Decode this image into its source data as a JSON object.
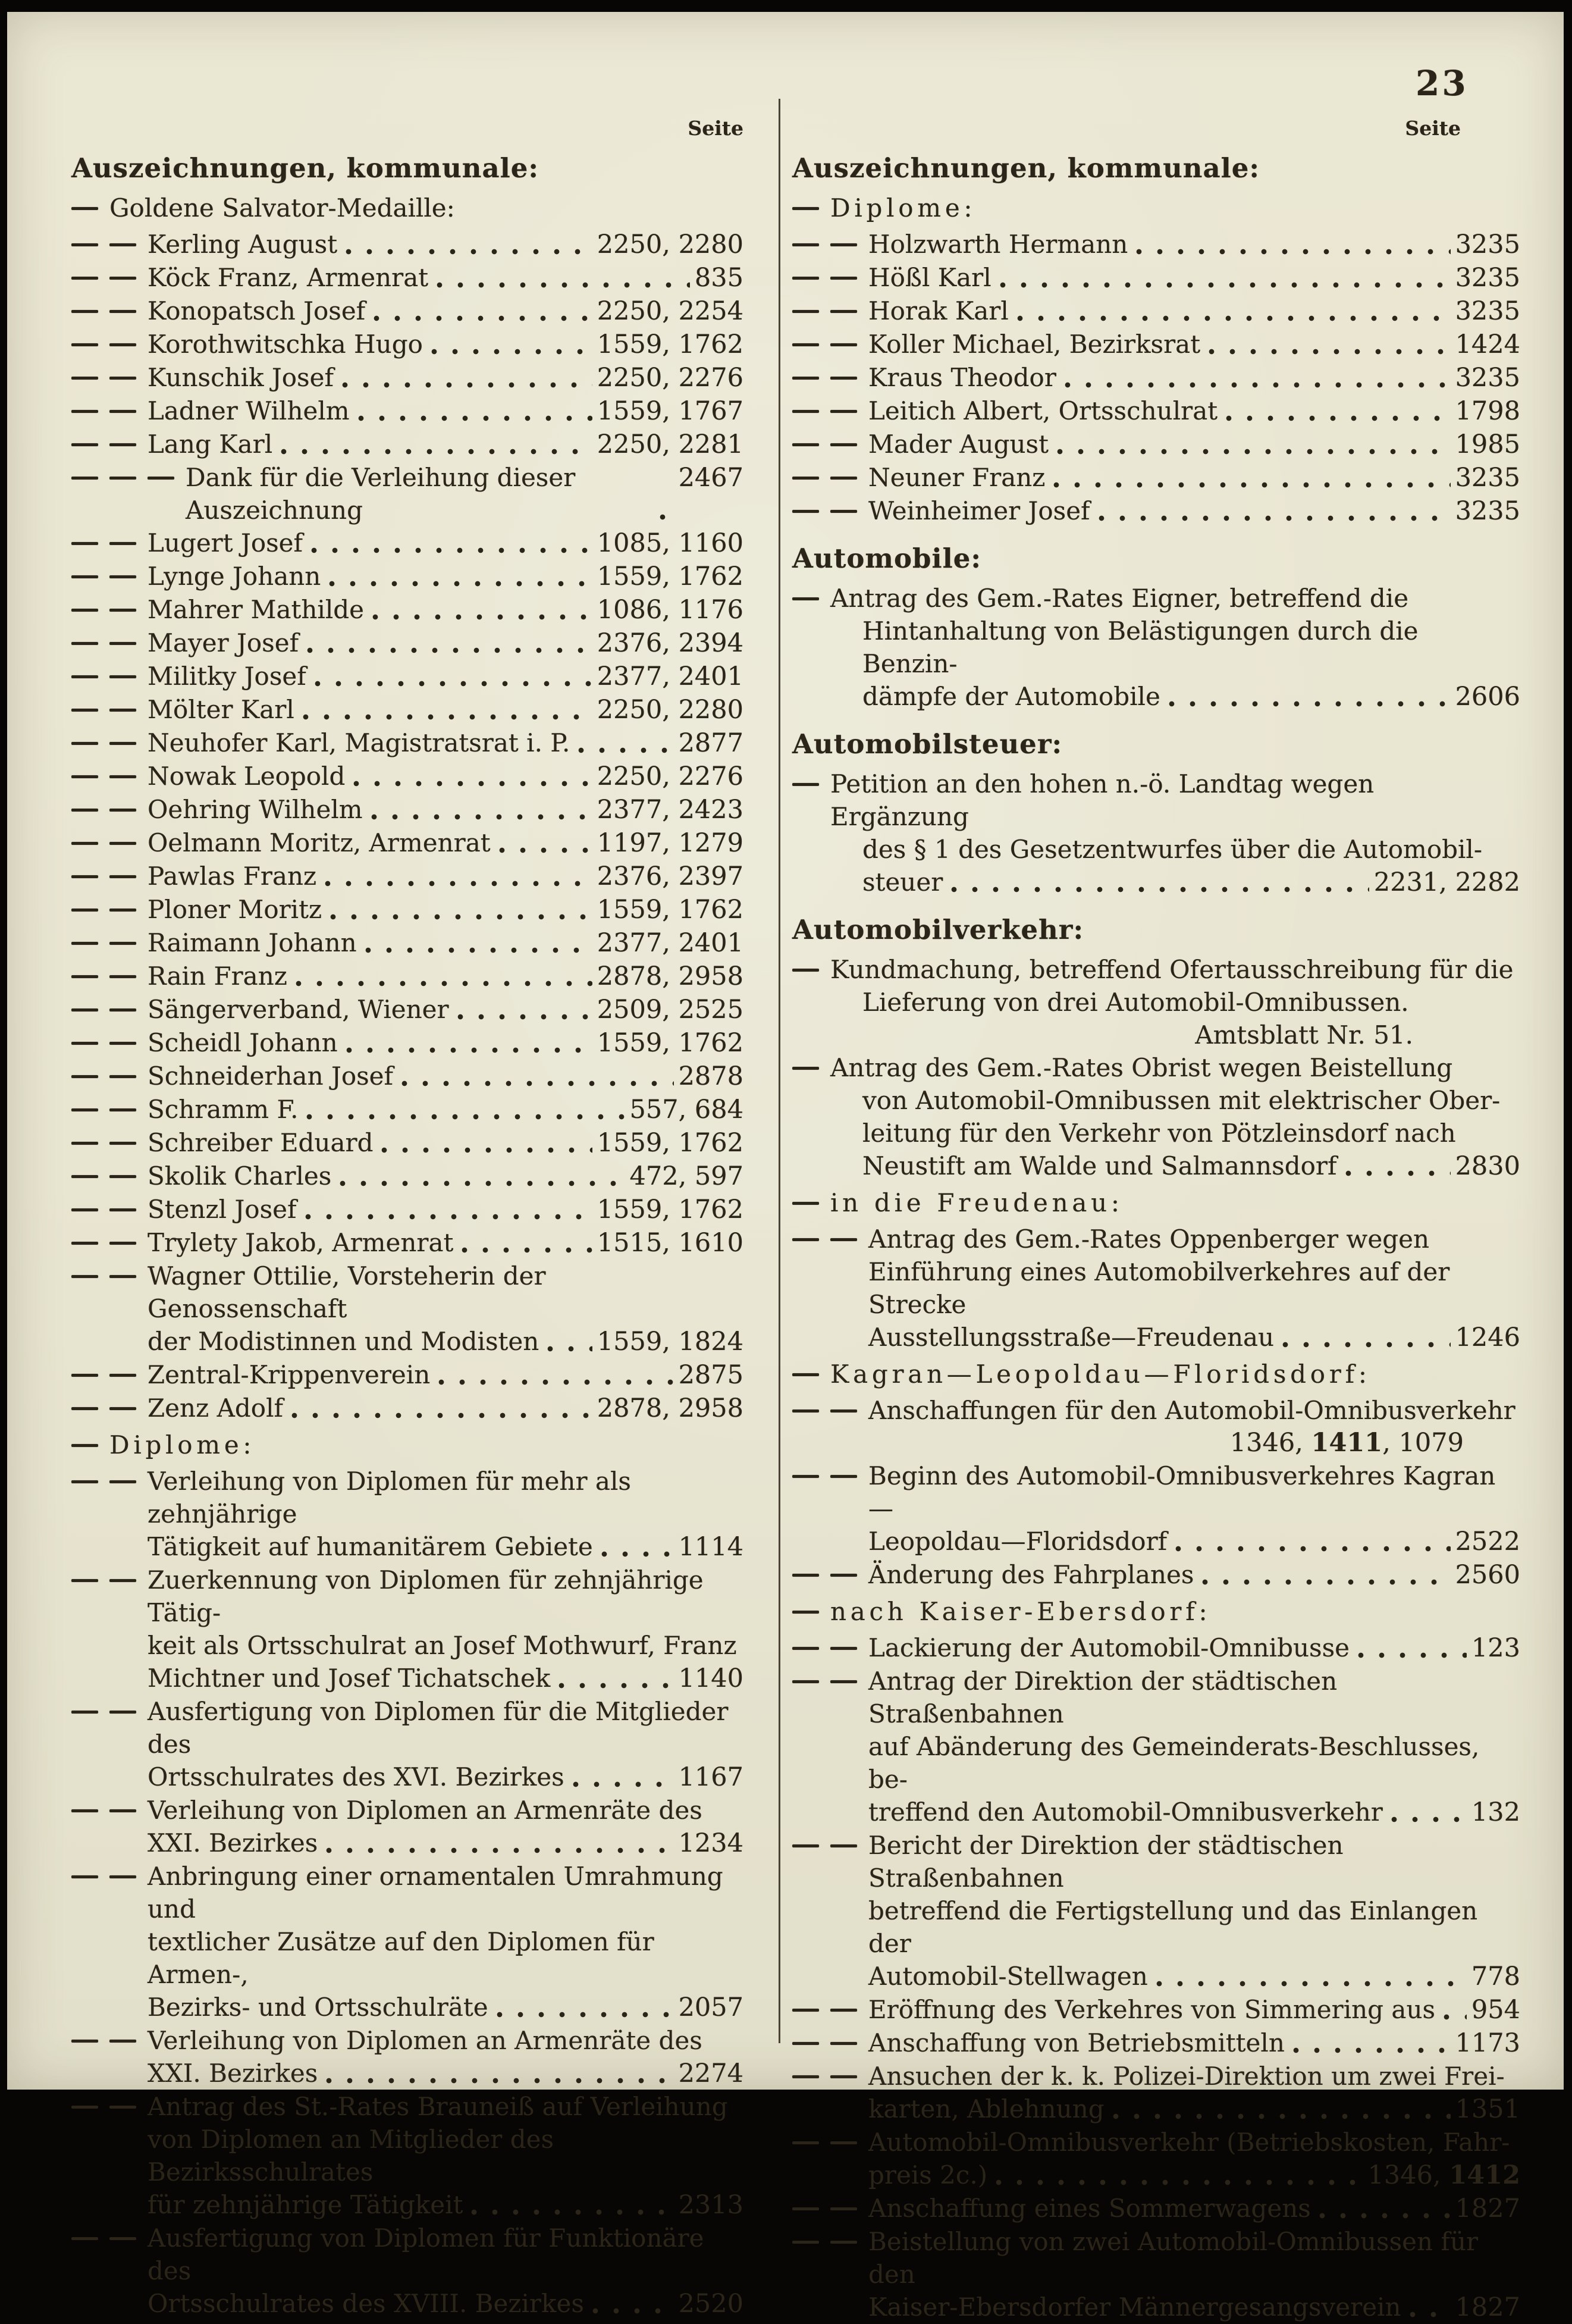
{
  "page": {
    "number": "23",
    "paper_color": "#e8e5d1",
    "ink_color": "#2b2418"
  },
  "columns": {
    "left": {
      "seite_label": "Seite",
      "entries": [
        {
          "type": "header",
          "text": "Auszeichnungen, kommunale:"
        },
        {
          "type": "sub",
          "dashes": 1,
          "text": "Goldene Salvator-Medaille:"
        },
        {
          "type": "item",
          "dashes": 2,
          "lines": [
            "Kerling August"
          ],
          "pages": "2250, 2280"
        },
        {
          "type": "item",
          "dashes": 2,
          "lines": [
            "Köck Franz, Armenrat"
          ],
          "pages": "835"
        },
        {
          "type": "item",
          "dashes": 2,
          "lines": [
            "Konopatsch Josef"
          ],
          "pages": "2250, 2254"
        },
        {
          "type": "item",
          "dashes": 2,
          "lines": [
            "Korothwitschka Hugo"
          ],
          "pages": "1559, 1762"
        },
        {
          "type": "item",
          "dashes": 2,
          "lines": [
            "Kunschik Josef"
          ],
          "pages": "2250, 2276"
        },
        {
          "type": "item",
          "dashes": 2,
          "lines": [
            "Ladner Wilhelm"
          ],
          "pages": "1559, 1767"
        },
        {
          "type": "item",
          "dashes": 2,
          "lines": [
            "Lang Karl"
          ],
          "pages": "2250, 2281"
        },
        {
          "type": "item",
          "dashes": 3,
          "lines": [
            "Dank für die Verleihung dieser Auszeichnung"
          ],
          "pages": "2467"
        },
        {
          "type": "item",
          "dashes": 2,
          "lines": [
            "Lugert Josef"
          ],
          "pages": "1085, 1160"
        },
        {
          "type": "item",
          "dashes": 2,
          "lines": [
            "Lynge Johann"
          ],
          "pages": "1559, 1762"
        },
        {
          "type": "item",
          "dashes": 2,
          "lines": [
            "Mahrer Mathilde"
          ],
          "pages": "1086, 1176"
        },
        {
          "type": "item",
          "dashes": 2,
          "lines": [
            "Mayer Josef"
          ],
          "pages": "2376, 2394"
        },
        {
          "type": "item",
          "dashes": 2,
          "lines": [
            "Militky Josef"
          ],
          "pages": "2377, 2401"
        },
        {
          "type": "item",
          "dashes": 2,
          "lines": [
            "Mölter Karl"
          ],
          "pages": "2250, 2280"
        },
        {
          "type": "item",
          "dashes": 2,
          "lines": [
            "Neuhofer Karl, Magistratsrat i. P."
          ],
          "pages": "2877"
        },
        {
          "type": "item",
          "dashes": 2,
          "lines": [
            "Nowak Leopold"
          ],
          "pages": "2250, 2276"
        },
        {
          "type": "item",
          "dashes": 2,
          "lines": [
            "Oehring Wilhelm"
          ],
          "pages": "2377, 2423"
        },
        {
          "type": "item",
          "dashes": 2,
          "lines": [
            "Oelmann Moritz, Armenrat"
          ],
          "pages": "1197, 1279"
        },
        {
          "type": "item",
          "dashes": 2,
          "lines": [
            "Pawlas Franz"
          ],
          "pages": "2376, 2397"
        },
        {
          "type": "item",
          "dashes": 2,
          "lines": [
            "Ploner Moritz"
          ],
          "pages": "1559, 1762"
        },
        {
          "type": "item",
          "dashes": 2,
          "lines": [
            "Raimann Johann"
          ],
          "pages": "2377, 2401"
        },
        {
          "type": "item",
          "dashes": 2,
          "lines": [
            "Rain Franz"
          ],
          "pages": "2878, 2958"
        },
        {
          "type": "item",
          "dashes": 2,
          "lines": [
            "Sängerverband, Wiener"
          ],
          "pages": "2509, 2525"
        },
        {
          "type": "item",
          "dashes": 2,
          "lines": [
            "Scheidl Johann"
          ],
          "pages": "1559, 1762"
        },
        {
          "type": "item",
          "dashes": 2,
          "lines": [
            "Schneiderhan Josef"
          ],
          "pages": "2878"
        },
        {
          "type": "item",
          "dashes": 2,
          "lines": [
            "Schramm F."
          ],
          "pages": "557, 684"
        },
        {
          "type": "item",
          "dashes": 2,
          "lines": [
            "Schreiber Eduard"
          ],
          "pages": "1559, 1762"
        },
        {
          "type": "item",
          "dashes": 2,
          "lines": [
            "Skolik Charles"
          ],
          "pages": "472, 597"
        },
        {
          "type": "item",
          "dashes": 2,
          "lines": [
            "Stenzl Josef"
          ],
          "pages": "1559, 1762"
        },
        {
          "type": "item",
          "dashes": 2,
          "lines": [
            "Trylety Jakob, Armenrat"
          ],
          "pages": "1515, 1610"
        },
        {
          "type": "item",
          "dashes": 2,
          "lines": [
            "Wagner Ottilie, Vorsteherin der Genossenschaft",
            "der Modistinnen und Modisten"
          ],
          "pages": "1559, 1824"
        },
        {
          "type": "item",
          "dashes": 2,
          "lines": [
            "Zentral-Krippenverein"
          ],
          "pages": "2875"
        },
        {
          "type": "item",
          "dashes": 2,
          "lines": [
            "Zenz Adolf"
          ],
          "pages": "2878, 2958"
        },
        {
          "type": "sub",
          "dashes": 1,
          "text": "Diplome:",
          "spaced": true
        },
        {
          "type": "item",
          "dashes": 2,
          "lines": [
            "Verleihung von Diplomen für mehr als zehnjährige",
            "Tätigkeit auf humanitärem Gebiete"
          ],
          "pages": "1114"
        },
        {
          "type": "item",
          "dashes": 2,
          "lines": [
            "Zuerkennung von Diplomen für zehnjährige Tätig-",
            "keit als Ortsschulrat an Josef Mothwurf, Franz",
            "Michtner und Josef Tichatschek"
          ],
          "pages": "1140"
        },
        {
          "type": "item",
          "dashes": 2,
          "lines": [
            "Ausfertigung von Diplomen für die Mitglieder des",
            "Ortsschulrates des XVI. Bezirkes"
          ],
          "pages": "1167"
        },
        {
          "type": "item",
          "dashes": 2,
          "lines": [
            "Verleihung von Diplomen an Armenräte des",
            "XXI. Bezirkes"
          ],
          "pages": "1234"
        },
        {
          "type": "item",
          "dashes": 2,
          "lines": [
            "Anbringung einer ornamentalen Umrahmung und",
            "textlicher Zusätze auf den Diplomen für Armen-,",
            "Bezirks- und Ortsschulräte"
          ],
          "pages": "2057"
        },
        {
          "type": "item",
          "dashes": 2,
          "lines": [
            "Verleihung von Diplomen an Armenräte des",
            "XXI. Bezirkes"
          ],
          "pages": "2274"
        },
        {
          "type": "item",
          "dashes": 2,
          "lines": [
            "Antrag des St.-Rates Brauneiß auf Verleihung",
            "von Diplomen an Mitglieder des Bezirksschulrates",
            "für zehnjährige Tätigkeit"
          ],
          "pages": "2313"
        },
        {
          "type": "item",
          "dashes": 2,
          "lines": [
            "Ausfertigung von Diplomen für Funktionäre des",
            "Ortsschulrates des XVIII. Bezirkes"
          ],
          "pages": "2520"
        }
      ]
    },
    "right": {
      "seite_label": "Seite",
      "entries": [
        {
          "type": "header",
          "text": "Auszeichnungen, kommunale:"
        },
        {
          "type": "sub",
          "dashes": 1,
          "text": "Diplome:",
          "spaced": true
        },
        {
          "type": "item",
          "dashes": 2,
          "lines": [
            "Holzwarth Hermann"
          ],
          "pages": "3235"
        },
        {
          "type": "item",
          "dashes": 2,
          "lines": [
            "Hößl Karl"
          ],
          "pages": "3235"
        },
        {
          "type": "item",
          "dashes": 2,
          "lines": [
            "Horak Karl"
          ],
          "pages": "3235"
        },
        {
          "type": "item",
          "dashes": 2,
          "lines": [
            "Koller Michael, Bezirksrat"
          ],
          "pages": "1424"
        },
        {
          "type": "item",
          "dashes": 2,
          "lines": [
            "Kraus Theodor"
          ],
          "pages": "3235"
        },
        {
          "type": "item",
          "dashes": 2,
          "lines": [
            "Leitich Albert, Ortsschulrat"
          ],
          "pages": "1798"
        },
        {
          "type": "item",
          "dashes": 2,
          "lines": [
            "Mader August"
          ],
          "pages": "1985"
        },
        {
          "type": "item",
          "dashes": 2,
          "lines": [
            "Neuner Franz"
          ],
          "pages": "3235"
        },
        {
          "type": "item",
          "dashes": 2,
          "lines": [
            "Weinheimer Josef"
          ],
          "pages": "3235"
        },
        {
          "type": "header",
          "text": "Automobile:"
        },
        {
          "type": "item",
          "dashes": 1,
          "lines": [
            "Antrag des Gem.-Rates Eigner, betreffend die",
            "Hintanhaltung von Belästigungen durch die Benzin-",
            "dämpfe der Automobile"
          ],
          "pages": "2606"
        },
        {
          "type": "header",
          "text": "Automobilsteuer:"
        },
        {
          "type": "item",
          "dashes": 1,
          "lines": [
            "Petition an den hohen n.-ö. Landtag wegen Ergänzung",
            "des § 1 des Gesetzentwurfes über die Automobil-",
            "steuer"
          ],
          "pages": "2231, 2282"
        },
        {
          "type": "header",
          "text": "Automobilverkehr:"
        },
        {
          "type": "item",
          "dashes": 1,
          "lines": [
            "Kundmachung, betreffend Ofertausschreibung für die",
            "Lieferung von drei Automobil-Omnibussen."
          ],
          "pages": null,
          "note": "Amtsblatt Nr. 51."
        },
        {
          "type": "item",
          "dashes": 1,
          "lines": [
            "Antrag des Gem.-Rates Obrist wegen Beistellung",
            "von Automobil-Omnibussen mit elektrischer Ober-",
            "leitung für den Verkehr von Pötzleinsdorf nach",
            "Neustift am Walde und Salmannsdorf"
          ],
          "pages": "2830"
        },
        {
          "type": "sub",
          "dashes": 1,
          "text": "in die Freudenau:",
          "spaced": true
        },
        {
          "type": "item",
          "dashes": 2,
          "lines": [
            "Antrag des Gem.-Rates Oppenberger wegen",
            "Einführung eines Automobilverkehres auf der Strecke",
            "Ausstellungsstraße—Freudenau"
          ],
          "pages": "1246"
        },
        {
          "type": "sub",
          "dashes": 1,
          "text": "Kagran—Leopoldau—Floridsdorf:",
          "spaced": true
        },
        {
          "type": "item",
          "dashes": 2,
          "lines": [
            "Anschaffungen für den Automobil-Omnibusverkehr"
          ],
          "pages": "1346, 1411, 1079",
          "pages_own_line": true,
          "bold_pages": [
            "1411"
          ]
        },
        {
          "type": "item",
          "dashes": 2,
          "lines": [
            "Beginn des Automobil-Omnibusverkehres Kagran—",
            "Leopoldau—Floridsdorf"
          ],
          "pages": "2522"
        },
        {
          "type": "item",
          "dashes": 2,
          "lines": [
            "Änderung des Fahrplanes"
          ],
          "pages": "2560"
        },
        {
          "type": "sub",
          "dashes": 1,
          "text": "nach Kaiser-Ebersdorf:",
          "spaced": true
        },
        {
          "type": "item",
          "dashes": 2,
          "lines": [
            "Lackierung der Automobil-Omnibusse"
          ],
          "pages": "123"
        },
        {
          "type": "item",
          "dashes": 2,
          "lines": [
            "Antrag der Direktion der städtischen Straßenbahnen",
            "auf Abänderung des Gemeinderats-Beschlusses, be-",
            "treffend den Automobil-Omnibusverkehr"
          ],
          "pages": "132"
        },
        {
          "type": "item",
          "dashes": 2,
          "lines": [
            "Bericht der Direktion der städtischen Straßenbahnen",
            "betreffend die Fertigstellung und das Einlangen der",
            "Automobil-Stellwagen"
          ],
          "pages": "778"
        },
        {
          "type": "item",
          "dashes": 2,
          "lines": [
            "Eröffnung des Verkehres von Simmering aus"
          ],
          "pages": "954"
        },
        {
          "type": "item",
          "dashes": 2,
          "lines": [
            "Anschaffung von Betriebsmitteln"
          ],
          "pages": "1173"
        },
        {
          "type": "item",
          "dashes": 2,
          "lines": [
            "Ansuchen der k. k. Polizei-Direktion um zwei Frei-",
            "karten, Ablehnung"
          ],
          "pages": "1351"
        },
        {
          "type": "item",
          "dashes": 2,
          "lines": [
            "Automobil-Omnibusverkehr (Betriebskosten, Fahr-",
            "preis 2c.)"
          ],
          "pages": "1346, 1412",
          "bold_pages": [
            "1412"
          ]
        },
        {
          "type": "item",
          "dashes": 2,
          "lines": [
            "Anschaffung eines Sommerwagens"
          ],
          "pages": "1827"
        },
        {
          "type": "item",
          "dashes": 2,
          "lines": [
            "Beistellung von zwei Automobil-Omnibussen für den",
            "Kaiser-Ebersdorfer Männergesangsverein"
          ],
          "pages": "1827"
        }
      ]
    }
  }
}
